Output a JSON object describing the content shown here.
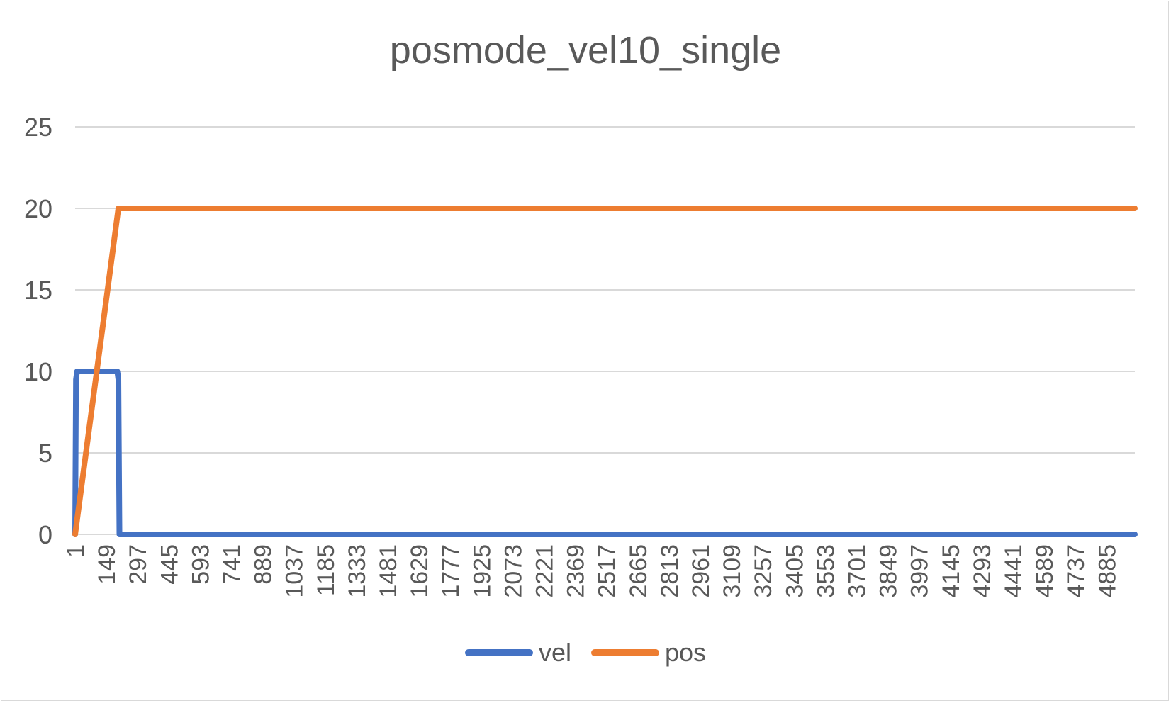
{
  "chart_data": {
    "type": "line",
    "title": "posmode_vel10_single",
    "xlabel": "",
    "ylabel": "",
    "ylim": [
      0,
      25
    ],
    "yticks": [
      0,
      5,
      10,
      15,
      20,
      25
    ],
    "xlim": [
      1,
      5000
    ],
    "xtick_labels": [
      "1",
      "149",
      "297",
      "445",
      "593",
      "741",
      "889",
      "1037",
      "1185",
      "1333",
      "1481",
      "1629",
      "1777",
      "1925",
      "2073",
      "2221",
      "2369",
      "2517",
      "2665",
      "2813",
      "2961",
      "3109",
      "3257",
      "3405",
      "3553",
      "3701",
      "3849",
      "3997",
      "4145",
      "4293",
      "4441",
      "4589",
      "4737",
      "4885"
    ],
    "grid": "horizontal",
    "legend_position": "bottom",
    "series": [
      {
        "name": "vel",
        "color": "#4472c4",
        "points": [
          [
            1,
            0
          ],
          [
            5,
            9.5
          ],
          [
            10,
            10
          ],
          [
            200,
            10
          ],
          [
            205,
            9.5
          ],
          [
            210,
            0
          ],
          [
            5000,
            0
          ]
        ]
      },
      {
        "name": "pos",
        "color": "#ed7d31",
        "points": [
          [
            1,
            0
          ],
          [
            205,
            20
          ],
          [
            5000,
            20
          ]
        ]
      }
    ]
  }
}
